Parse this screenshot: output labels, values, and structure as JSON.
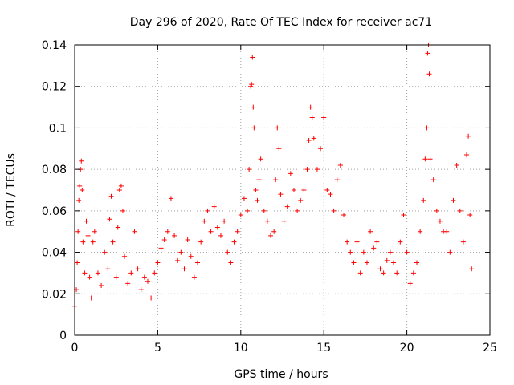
{
  "chart_data": {
    "type": "scatter",
    "title": "Day 296 of 2020, Rate Of TEC Index for receiver ac71",
    "xlabel": "GPS time / hours",
    "ylabel": "ROTI / TECUs",
    "xlim": [
      0,
      25
    ],
    "ylim": [
      0,
      0.14
    ],
    "x_ticks": [
      0,
      5,
      10,
      15,
      20,
      25
    ],
    "x_tick_labels": [
      "0",
      "5",
      "10",
      "15",
      "20",
      "25"
    ],
    "y_ticks": [
      0,
      0.02,
      0.04,
      0.06,
      0.08,
      0.1,
      0.12,
      0.14
    ],
    "y_tick_labels": [
      "0",
      "0.02",
      "0.04",
      "0.06",
      "0.08",
      "0.1",
      "0.12",
      "0.14"
    ],
    "grid": true,
    "marker": "plus",
    "color": "#ff0000",
    "series": [
      {
        "points": [
          [
            0.0,
            0.014
          ],
          [
            0.1,
            0.022
          ],
          [
            0.15,
            0.035
          ],
          [
            0.2,
            0.05
          ],
          [
            0.25,
            0.065
          ],
          [
            0.3,
            0.072
          ],
          [
            0.35,
            0.08
          ],
          [
            0.4,
            0.084
          ],
          [
            0.45,
            0.07
          ],
          [
            0.5,
            0.045
          ],
          [
            0.6,
            0.03
          ],
          [
            0.7,
            0.055
          ],
          [
            0.8,
            0.048
          ],
          [
            0.9,
            0.028
          ],
          [
            1.0,
            0.018
          ],
          [
            1.1,
            0.045
          ],
          [
            1.2,
            0.05
          ],
          [
            1.4,
            0.03
          ],
          [
            1.6,
            0.024
          ],
          [
            1.8,
            0.04
          ],
          [
            2.0,
            0.032
          ],
          [
            2.1,
            0.056
          ],
          [
            2.2,
            0.067
          ],
          [
            2.3,
            0.045
          ],
          [
            2.5,
            0.028
          ],
          [
            2.6,
            0.052
          ],
          [
            2.7,
            0.07
          ],
          [
            2.8,
            0.072
          ],
          [
            2.9,
            0.06
          ],
          [
            3.0,
            0.038
          ],
          [
            3.2,
            0.025
          ],
          [
            3.4,
            0.03
          ],
          [
            3.6,
            0.05
          ],
          [
            3.8,
            0.032
          ],
          [
            4.0,
            0.022
          ],
          [
            4.2,
            0.028
          ],
          [
            4.4,
            0.026
          ],
          [
            4.6,
            0.018
          ],
          [
            4.8,
            0.03
          ],
          [
            5.0,
            0.035
          ],
          [
            5.2,
            0.042
          ],
          [
            5.4,
            0.046
          ],
          [
            5.6,
            0.05
          ],
          [
            5.8,
            0.066
          ],
          [
            6.0,
            0.048
          ],
          [
            6.2,
            0.036
          ],
          [
            6.4,
            0.04
          ],
          [
            6.6,
            0.032
          ],
          [
            6.8,
            0.046
          ],
          [
            7.0,
            0.038
          ],
          [
            7.2,
            0.028
          ],
          [
            7.4,
            0.035
          ],
          [
            7.6,
            0.045
          ],
          [
            7.8,
            0.055
          ],
          [
            8.0,
            0.06
          ],
          [
            8.2,
            0.05
          ],
          [
            8.4,
            0.062
          ],
          [
            8.6,
            0.052
          ],
          [
            8.8,
            0.048
          ],
          [
            9.0,
            0.055
          ],
          [
            9.2,
            0.04
          ],
          [
            9.4,
            0.035
          ],
          [
            9.6,
            0.045
          ],
          [
            9.8,
            0.05
          ],
          [
            10.0,
            0.058
          ],
          [
            10.2,
            0.066
          ],
          [
            10.4,
            0.06
          ],
          [
            10.5,
            0.08
          ],
          [
            10.6,
            0.12
          ],
          [
            10.65,
            0.121
          ],
          [
            10.7,
            0.134
          ],
          [
            10.75,
            0.11
          ],
          [
            10.8,
            0.1
          ],
          [
            10.9,
            0.07
          ],
          [
            11.0,
            0.065
          ],
          [
            11.1,
            0.075
          ],
          [
            11.2,
            0.085
          ],
          [
            11.4,
            0.06
          ],
          [
            11.6,
            0.055
          ],
          [
            11.8,
            0.048
          ],
          [
            12.0,
            0.05
          ],
          [
            12.1,
            0.075
          ],
          [
            12.2,
            0.1
          ],
          [
            12.3,
            0.09
          ],
          [
            12.4,
            0.068
          ],
          [
            12.6,
            0.055
          ],
          [
            12.8,
            0.062
          ],
          [
            13.0,
            0.078
          ],
          [
            13.2,
            0.07
          ],
          [
            13.4,
            0.06
          ],
          [
            13.6,
            0.065
          ],
          [
            13.8,
            0.07
          ],
          [
            14.0,
            0.08
          ],
          [
            14.1,
            0.094
          ],
          [
            14.2,
            0.11
          ],
          [
            14.3,
            0.105
          ],
          [
            14.4,
            0.095
          ],
          [
            14.6,
            0.08
          ],
          [
            14.8,
            0.09
          ],
          [
            15.0,
            0.105
          ],
          [
            15.2,
            0.07
          ],
          [
            15.4,
            0.068
          ],
          [
            15.6,
            0.06
          ],
          [
            15.8,
            0.075
          ],
          [
            16.0,
            0.082
          ],
          [
            16.2,
            0.058
          ],
          [
            16.4,
            0.045
          ],
          [
            16.6,
            0.04
          ],
          [
            16.8,
            0.035
          ],
          [
            17.0,
            0.045
          ],
          [
            17.2,
            0.03
          ],
          [
            17.4,
            0.04
          ],
          [
            17.6,
            0.035
          ],
          [
            17.8,
            0.05
          ],
          [
            18.0,
            0.042
          ],
          [
            18.2,
            0.045
          ],
          [
            18.4,
            0.032
          ],
          [
            18.6,
            0.03
          ],
          [
            18.8,
            0.036
          ],
          [
            19.0,
            0.04
          ],
          [
            19.2,
            0.035
          ],
          [
            19.4,
            0.03
          ],
          [
            19.6,
            0.045
          ],
          [
            19.8,
            0.058
          ],
          [
            20.0,
            0.04
          ],
          [
            20.2,
            0.025
          ],
          [
            20.4,
            0.03
          ],
          [
            20.6,
            0.035
          ],
          [
            20.8,
            0.05
          ],
          [
            21.0,
            0.065
          ],
          [
            21.1,
            0.085
          ],
          [
            21.2,
            0.1
          ],
          [
            21.25,
            0.136
          ],
          [
            21.3,
            0.14
          ],
          [
            21.35,
            0.126
          ],
          [
            21.4,
            0.085
          ],
          [
            21.6,
            0.075
          ],
          [
            21.8,
            0.06
          ],
          [
            22.0,
            0.055
          ],
          [
            22.2,
            0.05
          ],
          [
            22.4,
            0.05
          ],
          [
            22.6,
            0.04
          ],
          [
            22.8,
            0.065
          ],
          [
            23.0,
            0.082
          ],
          [
            23.2,
            0.06
          ],
          [
            23.4,
            0.045
          ],
          [
            23.6,
            0.087
          ],
          [
            23.7,
            0.096
          ],
          [
            23.8,
            0.058
          ],
          [
            23.9,
            0.032
          ]
        ]
      }
    ]
  }
}
